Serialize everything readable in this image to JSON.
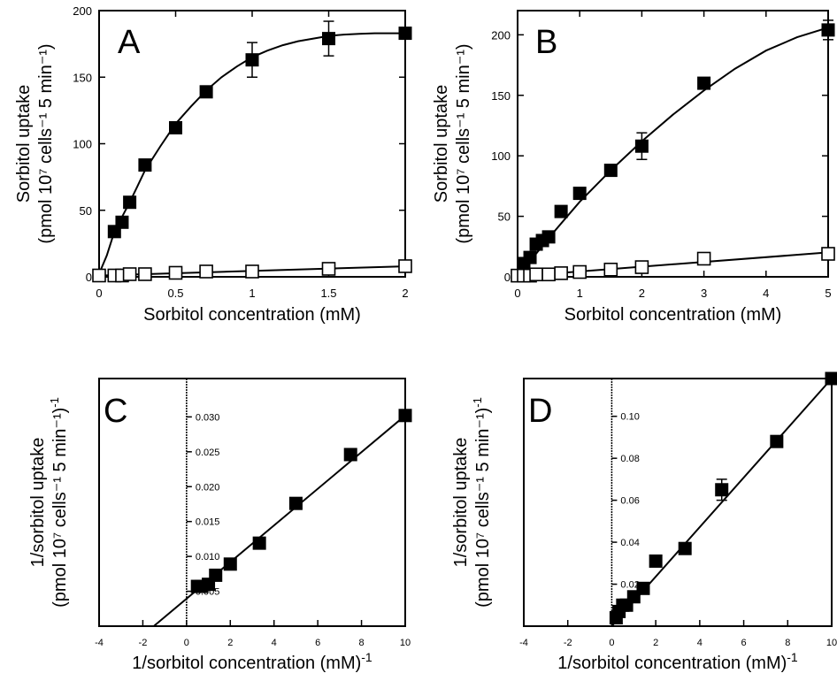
{
  "chart_data": [
    {
      "panel": "A",
      "type": "scatter",
      "xlabel": "Sorbitol concentration (mM)",
      "ylabel_line1": "Sorbitol uptake",
      "ylabel_line2": "(pmol  10⁷ cells⁻¹  5 min⁻¹)",
      "xlim": [
        0,
        2
      ],
      "ylim": [
        0,
        200
      ],
      "x_ticks": [
        0,
        0.5,
        1,
        1.5,
        2
      ],
      "x_tick_labels": [
        "0",
        "0.5",
        "1",
        "1.5",
        "2"
      ],
      "y_ticks": [
        0,
        50,
        100,
        150,
        200
      ],
      "y_tick_labels": [
        "0",
        "50",
        "100",
        "150",
        "200"
      ],
      "series": [
        {
          "marker": "filled-square",
          "x": [
            0.1,
            0.15,
            0.2,
            0.3,
            0.5,
            0.7,
            1.0,
            1.5,
            2.0
          ],
          "y": [
            34,
            41,
            56,
            84,
            112,
            139,
            163,
            179,
            183
          ],
          "error": [
            0,
            0,
            0,
            0,
            0,
            0,
            13,
            13,
            0
          ],
          "fit": "michaelis-menten",
          "fit_curve": {
            "x": [
              0.01,
              0.05,
              0.1,
              0.15,
              0.2,
              0.25,
              0.3,
              0.4,
              0.5,
              0.6,
              0.7,
              0.8,
              0.9,
              1.0,
              1.1,
              1.2,
              1.3,
              1.4,
              1.5,
              1.6,
              1.7,
              1.8,
              1.9,
              2.0
            ],
            "y": [
              5,
              16,
              34,
              45,
              56,
              68,
              80,
              98,
              115,
              128,
              140,
              150,
              158,
              165,
              170,
              174,
              177,
              179,
              181,
              182,
              182.5,
              183,
              183,
              183
            ]
          }
        },
        {
          "marker": "open-square",
          "x": [
            0,
            0.1,
            0.15,
            0.2,
            0.3,
            0.5,
            0.7,
            1.0,
            1.5,
            2.0
          ],
          "y": [
            1,
            1,
            1,
            2,
            2,
            3,
            4,
            4,
            6,
            8
          ],
          "fit": "linear"
        }
      ]
    },
    {
      "panel": "B",
      "type": "scatter",
      "xlabel": "Sorbitol concentration (mM)",
      "ylabel_line1": "Sorbitol uptake",
      "ylabel_line2": "(pmol  10⁷ cells⁻¹  5 min⁻¹)",
      "xlim": [
        0,
        5
      ],
      "ylim": [
        0,
        220
      ],
      "x_ticks": [
        0,
        1,
        2,
        3,
        4,
        5
      ],
      "x_tick_labels": [
        "0",
        "1",
        "2",
        "3",
        "4",
        "5"
      ],
      "y_ticks": [
        0,
        50,
        100,
        150,
        200
      ],
      "y_tick_labels": [
        "0",
        "50",
        "100",
        "150",
        "200"
      ],
      "series": [
        {
          "marker": "filled-square",
          "x": [
            0.1,
            0.2,
            0.3,
            0.4,
            0.5,
            0.7,
            1.0,
            1.5,
            2.0,
            3.0,
            5.0
          ],
          "y": [
            11,
            16,
            27,
            30,
            33,
            54,
            69,
            88,
            108,
            160,
            204
          ],
          "error": [
            0,
            0,
            0,
            0,
            0,
            0,
            0,
            0,
            11,
            0,
            8
          ],
          "fit": "michaelis-menten",
          "fit_curve": {
            "x": [
              0,
              0.25,
              0.5,
              0.75,
              1,
              1.5,
              2,
              2.5,
              3,
              3.5,
              4,
              4.5,
              5
            ],
            "y": [
              0,
              16,
              32,
              47,
              62,
              88,
              112,
              134,
              154,
              172,
              187,
              198,
              206
            ]
          }
        },
        {
          "marker": "open-square",
          "x": [
            0,
            0.1,
            0.2,
            0.3,
            0.5,
            0.7,
            1.0,
            1.5,
            2.0,
            3.0,
            5.0
          ],
          "y": [
            1,
            1,
            1,
            2,
            2,
            3,
            4,
            6,
            8,
            15,
            19
          ],
          "fit": "linear"
        }
      ]
    },
    {
      "panel": "C",
      "type": "scatter",
      "xlabel": "1/sorbitol concentration (mM)",
      "xlabel_sup": "-1",
      "ylabel_line1": "1/sorbitol uptake",
      "ylabel_line2": "(pmol  10⁷ cells⁻¹  5 min⁻¹)",
      "ylabel_sup": "-1",
      "xlim": [
        -4,
        10
      ],
      "ylim": [
        0,
        0.0355
      ],
      "x_ticks": [
        -4,
        -2,
        0,
        2,
        4,
        6,
        8,
        10
      ],
      "x_tick_labels": [
        "-4",
        "-2",
        "0",
        "2",
        "4",
        "6",
        "8",
        "10"
      ],
      "y_ticks": [
        0.005,
        0.01,
        0.015,
        0.02,
        0.025,
        0.03
      ],
      "y_tick_labels": [
        "0.005",
        "0.010",
        "0.015",
        "0.020",
        "0.025",
        "0.030"
      ],
      "series": [
        {
          "marker": "filled-square",
          "x": [
            0.5,
            0.67,
            1.0,
            1.33,
            2.0,
            3.33,
            5.0,
            7.5,
            10.0
          ],
          "y": [
            0.0057,
            0.0057,
            0.006,
            0.0073,
            0.0089,
            0.0119,
            0.0176,
            0.0246,
            0.0302
          ],
          "fit": "linear",
          "fit_line": {
            "x": [
              -1.5,
              10
            ],
            "y": [
              0,
              0.0302
            ]
          }
        }
      ]
    },
    {
      "panel": "D",
      "type": "scatter",
      "xlabel": "1/sorbitol concentration (mM)",
      "xlabel_sup": "-1",
      "ylabel_line1": "1/sorbitol uptake",
      "ylabel_line2": "(pmol  10⁷ cells⁻¹  5 min⁻¹)",
      "ylabel_sup": "-1",
      "xlim": [
        -4,
        10
      ],
      "ylim": [
        0,
        0.118
      ],
      "x_ticks": [
        -4,
        -2,
        0,
        2,
        4,
        6,
        8,
        10
      ],
      "x_tick_labels": [
        "-4",
        "-2",
        "0",
        "2",
        "4",
        "6",
        "8",
        "10"
      ],
      "y_ticks": [
        0.02,
        0.04,
        0.06,
        0.08,
        0.1
      ],
      "y_tick_labels": [
        "0.02",
        "0.04",
        "0.06",
        "0.08",
        "0.10"
      ],
      "series": [
        {
          "marker": "filled-square",
          "x": [
            0.2,
            0.33,
            0.5,
            0.67,
            1.0,
            1.43,
            2.0,
            3.33,
            5.0,
            7.5,
            10.0
          ],
          "y": [
            0.004,
            0.007,
            0.01,
            0.01,
            0.014,
            0.018,
            0.031,
            0.037,
            0.065,
            0.088,
            0.118
          ],
          "error": [
            0,
            0,
            0,
            0,
            0,
            0,
            0,
            0,
            0.005,
            0,
            0
          ],
          "fit": "linear",
          "fit_line": {
            "x": [
              0,
              10
            ],
            "y": [
              0,
              0.118
            ]
          }
        }
      ]
    }
  ],
  "panel_letters": [
    "A",
    "B",
    "C",
    "D"
  ]
}
